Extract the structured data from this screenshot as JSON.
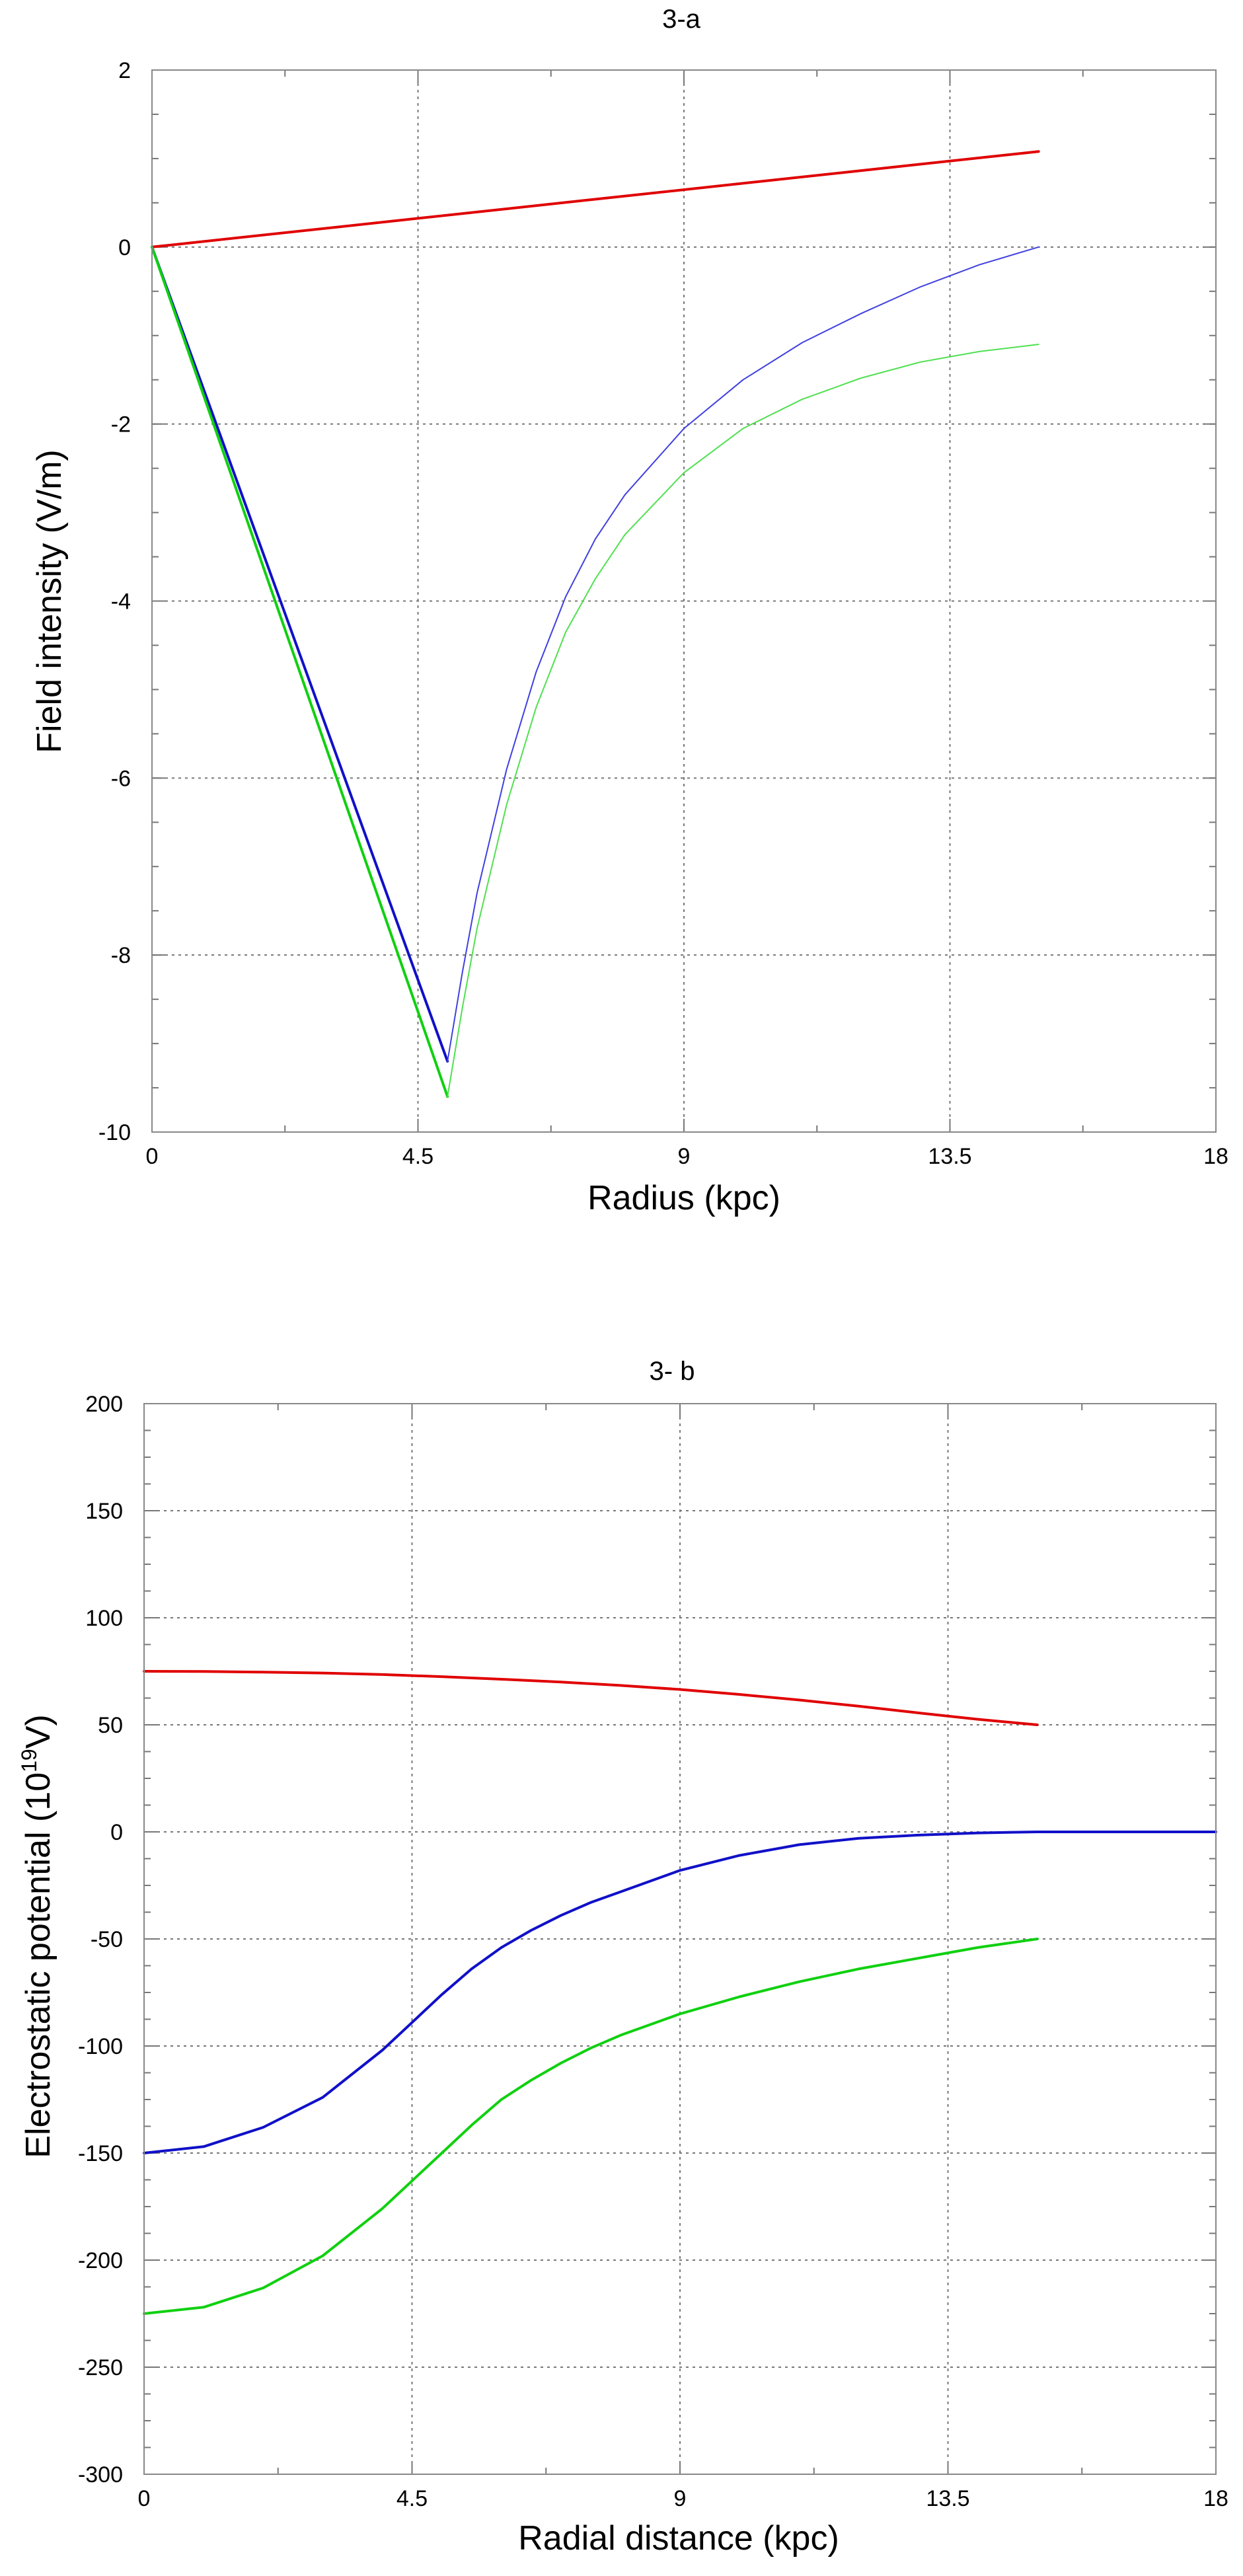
{
  "chart_data": [
    {
      "type": "line",
      "title": "3-a",
      "xlabel": "Radius (kpc)",
      "ylabel": "Field intensity (V/m)",
      "xlim": [
        0,
        18
      ],
      "ylim": [
        -10,
        2
      ],
      "xticks": [
        "0",
        "4.5",
        "9",
        "13.5",
        "18"
      ],
      "yticks": [
        "2",
        "0",
        "-2",
        "-4",
        "-6",
        "-8",
        "-10"
      ],
      "grid": true,
      "series": [
        {
          "color": "#e00000",
          "thick": true,
          "x": [
            0,
            15
          ],
          "y": [
            0,
            1.08
          ]
        },
        {
          "color": "#1010c8",
          "thick": true,
          "x": [
            0,
            5
          ],
          "y": [
            0,
            -9.2
          ]
        },
        {
          "color": "#10d010",
          "thick": true,
          "x": [
            0,
            5
          ],
          "y": [
            0,
            -9.6
          ]
        },
        {
          "color": "#4040e0",
          "thick": false,
          "x": [
            5,
            5.25,
            5.5,
            6,
            6.5,
            7,
            7.5,
            8,
            9,
            10,
            11,
            12,
            13,
            14,
            15
          ],
          "y": [
            -9.2,
            -8.2,
            -7.3,
            -5.9,
            -4.8,
            -3.95,
            -3.3,
            -2.8,
            -2.05,
            -1.5,
            -1.08,
            -0.75,
            -0.45,
            -0.2,
            0.0
          ]
        },
        {
          "color": "#50e050",
          "thick": false,
          "x": [
            5,
            5.25,
            5.5,
            6,
            6.5,
            7,
            7.5,
            8,
            9,
            10,
            11,
            12,
            13,
            14,
            15
          ],
          "y": [
            -9.6,
            -8.6,
            -7.7,
            -6.3,
            -5.2,
            -4.35,
            -3.75,
            -3.25,
            -2.55,
            -2.05,
            -1.72,
            -1.48,
            -1.3,
            -1.18,
            -1.1
          ]
        }
      ]
    },
    {
      "type": "line",
      "title": "3- b",
      "xlabel": "Radial distance (kpc)",
      "ylabel_main": "Electrostatic potential (10",
      "ylabel_sup": "19",
      "ylabel_end": "V)",
      "xlim": [
        0,
        18
      ],
      "ylim": [
        -300,
        200
      ],
      "xticks": [
        "0",
        "4.5",
        "9",
        "13.5",
        "18"
      ],
      "yticks": [
        "200",
        "150",
        "100",
        "50",
        "0",
        "-50",
        "-100",
        "-150",
        "-200",
        "-250",
        "-300"
      ],
      "grid": true,
      "series": [
        {
          "color": "#e00000",
          "thick": true,
          "x": [
            0,
            1,
            2,
            3,
            4,
            5,
            6,
            7,
            8,
            9,
            10,
            11,
            12,
            13,
            14,
            15
          ],
          "y": [
            75,
            74.9,
            74.6,
            74.2,
            73.5,
            72.5,
            71.3,
            70,
            68.4,
            66.5,
            64.2,
            61.6,
            58.7,
            55.6,
            52.6,
            50
          ]
        },
        {
          "color": "#1010c8",
          "thick": true,
          "x": [
            0,
            1,
            2,
            3,
            4,
            4.5,
            5,
            5.5,
            6,
            6.5,
            7,
            7.5,
            8,
            9,
            10,
            11,
            12,
            13,
            14,
            15,
            16,
            17,
            18
          ],
          "y": [
            -150,
            -147,
            -138,
            -124,
            -102,
            -89,
            -76,
            -64,
            -54,
            -46,
            -39,
            -33,
            -28,
            -18,
            -11,
            -6,
            -3,
            -1.5,
            -0.5,
            0,
            0,
            0,
            0
          ]
        },
        {
          "color": "#10d010",
          "thick": true,
          "x": [
            0,
            1,
            2,
            3,
            4,
            4.5,
            5,
            5.5,
            6,
            6.5,
            7,
            7.5,
            8,
            9,
            10,
            11,
            12,
            13,
            14,
            15
          ],
          "y": [
            -225,
            -222,
            -213,
            -198,
            -176,
            -163,
            -150,
            -137,
            -125,
            -116,
            -108,
            -101,
            -95,
            -85,
            -77,
            -70,
            -64,
            -59,
            -54,
            -50
          ]
        }
      ]
    }
  ]
}
